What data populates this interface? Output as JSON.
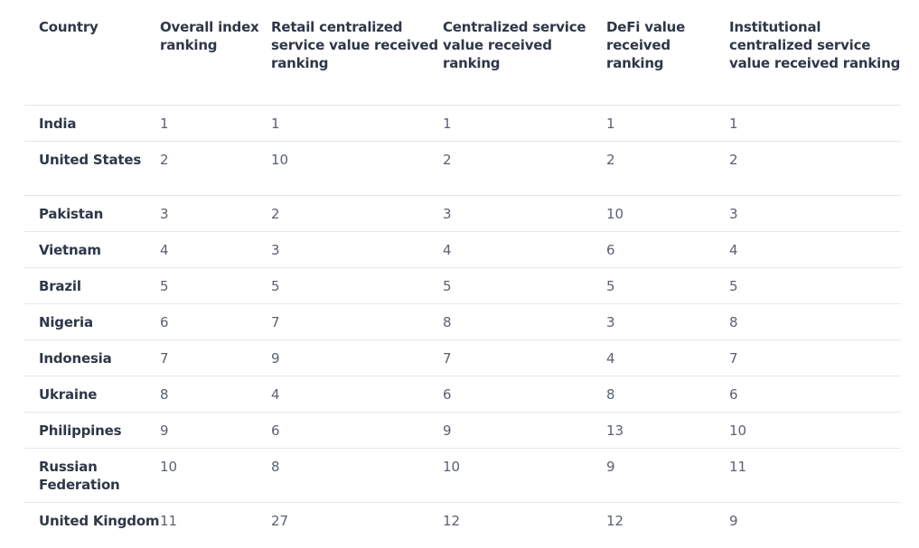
{
  "table": {
    "headers": [
      "Country",
      "Overall index ranking",
      "Retail centralized service value received ranking",
      "Centralized service value received ranking",
      "DeFi value received ranking",
      "Institutional centralized service value received ranking"
    ],
    "rows": [
      [
        "India",
        "1",
        "1",
        "1",
        "1",
        "1"
      ],
      [
        "United States",
        "2",
        "10",
        "2",
        "2",
        "2"
      ],
      [
        "Pakistan",
        "3",
        "2",
        "3",
        "10",
        "3"
      ],
      [
        "Vietnam",
        "4",
        "3",
        "4",
        "6",
        "4"
      ],
      [
        "Brazil",
        "5",
        "5",
        "5",
        "5",
        "5"
      ],
      [
        "Nigeria",
        "6",
        "7",
        "8",
        "3",
        "8"
      ],
      [
        "Indonesia",
        "7",
        "9",
        "7",
        "4",
        "7"
      ],
      [
        "Ukraine",
        "8",
        "4",
        "6",
        "8",
        "6"
      ],
      [
        "Philippines",
        "9",
        "6",
        "9",
        "13",
        "10"
      ],
      [
        "Russian Federation",
        "10",
        "8",
        "10",
        "9",
        "11"
      ],
      [
        "United Kingdom",
        "11",
        "27",
        "12",
        "12",
        "9"
      ]
    ]
  }
}
